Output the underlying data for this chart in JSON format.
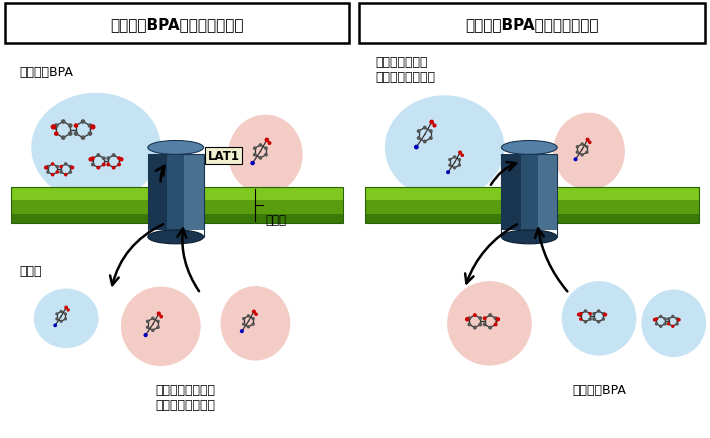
{
  "left_header": "細胞外のBPA濃度が高いとき",
  "right_header": "細胞外のBPA濃度が低いとき",
  "left_extracell_label": "細胞外のBPA",
  "left_cytoplasm_label": "細胞質",
  "left_bottom_label": "グルタミンなどの\n細胞内のアミノ酸",
  "right_top_label": "チロシンなどの\n細胞外のアミノ酸",
  "right_bottom_label": "細胞内のBPA",
  "membrane_label": "細胞膜",
  "lat1_label": "LAT1",
  "bg_color": "#ffffff",
  "membrane_green_top": "#7ec820",
  "membrane_green_mid": "#5a9e10",
  "membrane_green_bot": "#3a7a08",
  "cylinder_top": "#5580a8",
  "cylinder_body": "#2a5070",
  "blue_ellipse": "#b8ddf0",
  "pink_ellipse": "#f0c0b8"
}
